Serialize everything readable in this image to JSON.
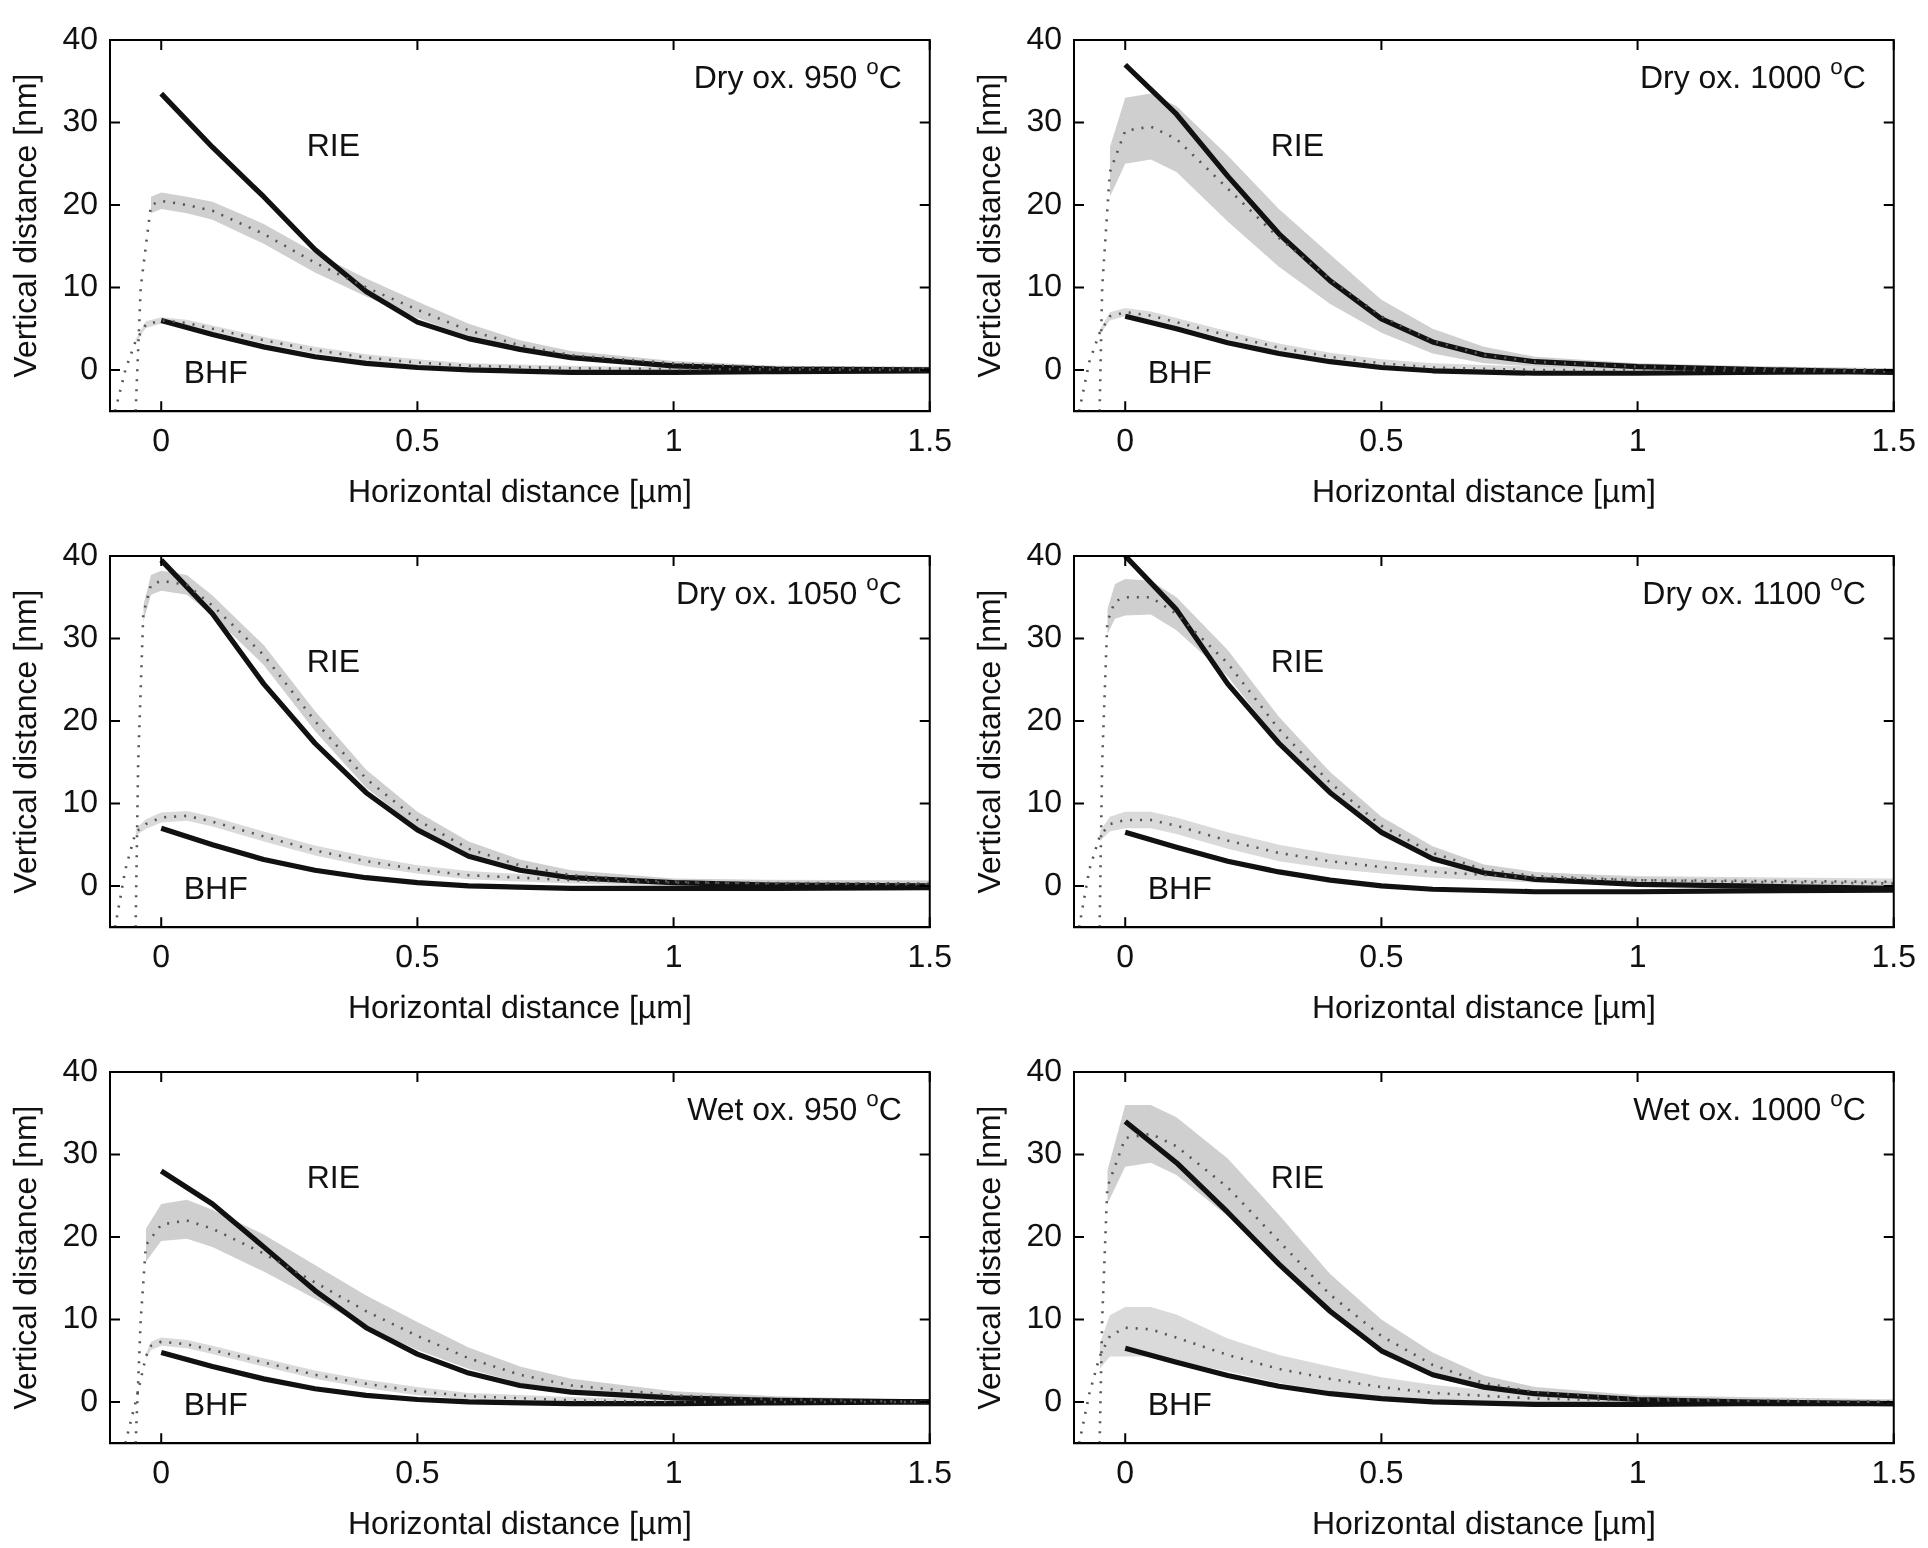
{
  "chart_data": [
    {
      "type": "line",
      "title": "Dry ox. 950 $^{o}$C",
      "xlabel": "Horizontal distance [µm]",
      "ylabel": "Vertical distance [nm]",
      "xlim": [
        -0.1,
        1.5
      ],
      "ylim": [
        -5,
        40
      ],
      "xticks": [
        0,
        0.5,
        1,
        1.5
      ],
      "yticks": [
        0,
        10,
        20,
        30,
        40
      ],
      "annotations": [
        "RIE",
        "BHF"
      ],
      "series": [
        {
          "type": "line",
          "color": "#555555",
          "line_style": "dotted",
          "x": [
            -0.05,
            -0.04,
            -0.02,
            0,
            0.05,
            0.1,
            0.2,
            0.3,
            0.4,
            0.5,
            0.6,
            0.7,
            0.8,
            1.0,
            1.2,
            1.5
          ],
          "values": [
            -5,
            10,
            20,
            20.5,
            20,
            19.3,
            16.5,
            13,
            10,
            7.3,
            4.8,
            3,
            1.8,
            0.8,
            0.3,
            0.2
          ],
          "lower": [
            null,
            null,
            19,
            19.5,
            19,
            18.2,
            15.3,
            11.8,
            8.9,
            6.3,
            4,
            2.4,
            1.3,
            0.5,
            0.1,
            0
          ],
          "upper": [
            null,
            null,
            21,
            21.5,
            21,
            20.4,
            17.7,
            14.2,
            11.1,
            8.3,
            5.6,
            3.6,
            2.3,
            1.1,
            0.5,
            0.4
          ]
        },
        {
          "type": "line",
          "color": "#555555",
          "line_style": "dotted",
          "x": [
            -0.09,
            -0.07,
            -0.05,
            -0.03,
            0,
            0.05,
            0.1,
            0.2,
            0.3,
            0.4,
            0.5,
            0.6,
            0.8,
            1.0,
            1.5
          ],
          "values": [
            -5,
            0,
            3.5,
            5.5,
            6,
            5.7,
            5,
            3.6,
            2.4,
            1.5,
            0.9,
            0.5,
            0.2,
            0.1,
            0
          ],
          "lower": [
            null,
            null,
            3.3,
            5.1,
            5.6,
            5.3,
            4.6,
            3.2,
            2,
            1.1,
            0.5,
            0.2,
            -0.1,
            -0.1,
            -0.2
          ],
          "upper": [
            null,
            null,
            3.7,
            5.9,
            6.4,
            6.1,
            5.4,
            4,
            2.8,
            1.9,
            1.3,
            0.8,
            0.5,
            0.3,
            0.2
          ]
        },
        {
          "type": "line",
          "color": "#111111",
          "line_style": "solid",
          "x": [
            0,
            0.1,
            0.2,
            0.3,
            0.4,
            0.5,
            0.6,
            0.7,
            0.8,
            1.0,
            1.2,
            1.5
          ],
          "values": [
            33.5,
            27,
            21,
            14.6,
            9.5,
            5.8,
            3.8,
            2.5,
            1.5,
            0.5,
            0.1,
            0
          ]
        },
        {
          "type": "line",
          "color": "#111111",
          "line_style": "solid",
          "x": [
            0,
            0.1,
            0.2,
            0.3,
            0.4,
            0.5,
            0.6,
            0.8,
            1.0,
            1.2,
            1.5
          ],
          "values": [
            6,
            4.3,
            2.8,
            1.6,
            0.8,
            0.3,
            0,
            -0.3,
            -0.3,
            -0.2,
            -0.1
          ]
        }
      ]
    },
    {
      "type": "line",
      "title": "Dry ox. 1000 $^{o}$C",
      "xlabel": "Horizontal distance [µm]",
      "ylabel": "Vertical distance [nm]",
      "xlim": [
        -0.1,
        1.5
      ],
      "ylim": [
        -5,
        40
      ],
      "xticks": [
        0,
        0.5,
        1,
        1.5
      ],
      "yticks": [
        0,
        10,
        20,
        30,
        40
      ],
      "annotations": [
        "RIE",
        "BHF"
      ],
      "series": [
        {
          "type": "line",
          "color": "#555555",
          "line_style": "dotted",
          "x": [
            -0.05,
            -0.045,
            -0.03,
            0,
            0.05,
            0.1,
            0.2,
            0.3,
            0.4,
            0.5,
            0.6,
            0.7,
            0.8,
            1.0,
            1.2,
            1.5
          ],
          "values": [
            -5,
            10,
            24,
            29,
            29.5,
            28,
            22,
            16,
            11,
            6.5,
            3.5,
            1.8,
            1,
            0.4,
            0.2,
            0
          ],
          "lower": [
            null,
            null,
            21,
            25,
            25.5,
            24,
            18,
            12.5,
            8,
            4.5,
            2,
            0.8,
            0.4,
            0,
            -0.1,
            -0.2
          ],
          "upper": [
            null,
            null,
            27,
            33,
            33.5,
            32,
            26,
            19.5,
            14,
            8.5,
            5,
            2.8,
            1.6,
            0.8,
            0.5,
            0.2
          ]
        },
        {
          "type": "line",
          "color": "#555555",
          "line_style": "dotted",
          "x": [
            -0.09,
            -0.07,
            -0.05,
            -0.03,
            0,
            0.05,
            0.1,
            0.2,
            0.3,
            0.4,
            0.5,
            0.6,
            0.8,
            1.0,
            1.5
          ],
          "values": [
            -5,
            1,
            4.5,
            6.5,
            7,
            6.6,
            5.8,
            4.2,
            2.7,
            1.6,
            0.8,
            0.3,
            0,
            0,
            -0.2
          ],
          "lower": [
            null,
            null,
            4.2,
            6,
            6.5,
            6.1,
            5.3,
            3.7,
            2.2,
            1.1,
            0.3,
            -0.2,
            -0.4,
            -0.4,
            -0.5
          ],
          "upper": [
            null,
            null,
            4.8,
            7,
            7.5,
            7.1,
            6.3,
            4.7,
            3.2,
            2.1,
            1.3,
            0.8,
            0.4,
            0.4,
            0.1
          ]
        },
        {
          "type": "line",
          "color": "#111111",
          "line_style": "solid",
          "x": [
            0,
            0.1,
            0.2,
            0.3,
            0.4,
            0.5,
            0.6,
            0.7,
            0.8,
            1.0,
            1.2,
            1.5
          ],
          "values": [
            37,
            31,
            23.5,
            16.5,
            10.8,
            6.2,
            3.4,
            1.8,
            1,
            0.4,
            0.1,
            -0.3
          ]
        },
        {
          "type": "line",
          "color": "#111111",
          "line_style": "solid",
          "x": [
            0,
            0.1,
            0.2,
            0.3,
            0.4,
            0.5,
            0.6,
            0.8,
            1.0,
            1.2,
            1.5
          ],
          "values": [
            6.5,
            5,
            3.3,
            2,
            1,
            0.3,
            -0.1,
            -0.4,
            -0.4,
            -0.3,
            -0.2
          ]
        }
      ]
    },
    {
      "type": "line",
      "title": "Dry ox. 1050 $^{o}$C",
      "xlabel": "Horizontal distance [µm]",
      "ylabel": "Vertical distance [nm]",
      "xlim": [
        -0.1,
        1.5
      ],
      "ylim": [
        -5,
        40
      ],
      "xticks": [
        0,
        0.5,
        1,
        1.5
      ],
      "yticks": [
        0,
        10,
        20,
        30,
        40
      ],
      "annotations": [
        "RIE",
        "BHF"
      ],
      "series": [
        {
          "type": "line",
          "color": "#555555",
          "line_style": "dotted",
          "x": [
            -0.05,
            -0.045,
            -0.035,
            -0.02,
            0,
            0.05,
            0.1,
            0.2,
            0.3,
            0.4,
            0.5,
            0.6,
            0.7,
            0.8,
            1.0,
            1.2,
            1.5
          ],
          "values": [
            -5,
            15,
            33,
            36.5,
            37,
            36.5,
            34,
            28,
            20,
            13,
            8,
            4.5,
            2.5,
            1.3,
            0.5,
            0.3,
            0.2
          ],
          "lower": [
            null,
            null,
            32,
            35.3,
            35.8,
            35.3,
            32.8,
            26.8,
            18.8,
            11.9,
            7,
            3.6,
            1.8,
            0.7,
            0.1,
            -0.1,
            -0.2
          ],
          "upper": [
            null,
            null,
            34,
            37.7,
            38.2,
            37.7,
            35.2,
            29.2,
            21.2,
            14.1,
            9,
            5.4,
            3.2,
            1.9,
            0.9,
            0.7,
            0.6
          ]
        },
        {
          "type": "line",
          "color": "#555555",
          "line_style": "dotted",
          "x": [
            -0.09,
            -0.07,
            -0.05,
            -0.03,
            0,
            0.05,
            0.1,
            0.2,
            0.3,
            0.4,
            0.5,
            0.6,
            0.8,
            1.0,
            1.5
          ],
          "values": [
            -5,
            2,
            6.5,
            7.5,
            8.3,
            8.5,
            7.8,
            6,
            4.3,
            3,
            2,
            1.3,
            0.7,
            0.4,
            0.3
          ],
          "lower": [
            null,
            null,
            6.1,
            6.9,
            7.7,
            7.9,
            7.2,
            5.4,
            3.7,
            2.4,
            1.5,
            0.8,
            0.3,
            0,
            -0.1
          ],
          "upper": [
            null,
            null,
            6.9,
            8.1,
            8.9,
            9.1,
            8.4,
            6.6,
            4.9,
            3.6,
            2.5,
            1.8,
            1.1,
            0.8,
            0.7
          ]
        },
        {
          "type": "line",
          "color": "#111111",
          "line_style": "solid",
          "x": [
            0,
            0.1,
            0.2,
            0.3,
            0.4,
            0.5,
            0.6,
            0.7,
            0.8,
            1.0,
            1.2,
            1.5
          ],
          "values": [
            39.5,
            33,
            24.5,
            17.3,
            11.3,
            6.8,
            3.6,
            1.9,
            1,
            0.4,
            0.1,
            0
          ]
        },
        {
          "type": "line",
          "color": "#111111",
          "line_style": "solid",
          "x": [
            0,
            0.1,
            0.2,
            0.3,
            0.4,
            0.5,
            0.6,
            0.8,
            1.0,
            1.2,
            1.5
          ],
          "values": [
            7,
            5,
            3.2,
            1.9,
            1,
            0.4,
            0,
            -0.3,
            -0.3,
            -0.3,
            -0.2
          ]
        }
      ]
    },
    {
      "type": "line",
      "title": "Dry ox. 1100 $^{o}$C",
      "xlabel": "Horizontal distance [µm]",
      "ylabel": "Vertical distance [nm]",
      "xlim": [
        -0.1,
        1.5
      ],
      "ylim": [
        -5,
        40
      ],
      "xticks": [
        0,
        0.5,
        1,
        1.5
      ],
      "yticks": [
        0,
        10,
        20,
        30,
        40
      ],
      "annotations": [
        "RIE",
        "BHF"
      ],
      "series": [
        {
          "type": "line",
          "color": "#555555",
          "line_style": "dotted",
          "x": [
            -0.05,
            -0.045,
            -0.035,
            -0.02,
            0,
            0.05,
            0.1,
            0.2,
            0.3,
            0.4,
            0.5,
            0.6,
            0.7,
            0.8,
            1.0,
            1.2,
            1.5
          ],
          "values": [
            -5,
            15,
            32,
            34.5,
            35,
            35,
            33,
            27,
            19,
            12.5,
            7.3,
            4,
            2,
            1.2,
            0.7,
            0.5,
            0.3
          ],
          "lower": [
            null,
            null,
            30.5,
            32.4,
            32.8,
            32.9,
            31,
            25.4,
            17.5,
            11.2,
            6.2,
            3.2,
            1.4,
            0.7,
            0.3,
            0.1,
            0
          ],
          "upper": [
            null,
            null,
            33.5,
            36.6,
            37.2,
            37,
            35,
            28.6,
            20.5,
            13.8,
            8.4,
            4.8,
            2.6,
            1.7,
            1.1,
            0.9,
            0.6
          ]
        },
        {
          "type": "line",
          "color": "#555555",
          "line_style": "dotted",
          "x": [
            -0.09,
            -0.07,
            -0.05,
            -0.03,
            0,
            0.05,
            0.1,
            0.2,
            0.3,
            0.4,
            0.5,
            0.6,
            0.8,
            1.0,
            1.5
          ],
          "values": [
            -5,
            2,
            6,
            7.5,
            8,
            8,
            7.3,
            5.5,
            4,
            3,
            2.3,
            1.7,
            1,
            0.7,
            0.5
          ],
          "lower": [
            null,
            null,
            5.4,
            6.6,
            7,
            7,
            6.3,
            4.5,
            3,
            2.1,
            1.5,
            1,
            0.4,
            0.2,
            0.1
          ],
          "upper": [
            null,
            null,
            6.6,
            8.4,
            9,
            9,
            8.3,
            6.5,
            5,
            3.9,
            3.1,
            2.4,
            1.6,
            1.2,
            0.9
          ]
        },
        {
          "type": "line",
          "color": "#111111",
          "line_style": "solid",
          "x": [
            0,
            0.1,
            0.2,
            0.3,
            0.4,
            0.5,
            0.6,
            0.7,
            0.8,
            1.0,
            1.2,
            1.5
          ],
          "values": [
            40,
            33.5,
            24.5,
            17.3,
            11.3,
            6.5,
            3.3,
            1.6,
            0.8,
            0.2,
            0,
            -0.3
          ]
        },
        {
          "type": "line",
          "color": "#111111",
          "line_style": "solid",
          "x": [
            0,
            0.1,
            0.2,
            0.3,
            0.4,
            0.5,
            0.6,
            0.8,
            1.0,
            1.2,
            1.5
          ],
          "values": [
            6.5,
            4.7,
            3,
            1.7,
            0.7,
            0,
            -0.4,
            -0.7,
            -0.7,
            -0.6,
            -0.5
          ]
        }
      ]
    },
    {
      "type": "line",
      "title": "Wet ox. 950 $^{o}$C",
      "xlabel": "Horizontal distance [µm]",
      "ylabel": "Vertical distance [nm]",
      "xlim": [
        -0.1,
        1.5
      ],
      "ylim": [
        -5,
        40
      ],
      "xticks": [
        0,
        0.5,
        1,
        1.5
      ],
      "yticks": [
        0,
        10,
        20,
        30,
        40
      ],
      "annotations": [
        "RIE",
        "BHF"
      ],
      "series": [
        {
          "type": "line",
          "color": "#555555",
          "line_style": "dotted",
          "x": [
            -0.05,
            -0.04,
            -0.03,
            0,
            0.05,
            0.1,
            0.2,
            0.3,
            0.4,
            0.5,
            0.6,
            0.7,
            0.8,
            1.0,
            1.2,
            1.5
          ],
          "values": [
            -5,
            10,
            19,
            21.5,
            22,
            21,
            18,
            14.5,
            11,
            8,
            5.3,
            3.3,
            2,
            0.8,
            0.3,
            0
          ],
          "lower": [
            null,
            null,
            17,
            19.5,
            19.8,
            18.8,
            15.8,
            12.5,
            9.1,
            6.3,
            4,
            2.3,
            1.2,
            0.3,
            -0.1,
            -0.2
          ],
          "upper": [
            null,
            null,
            21,
            24,
            24.5,
            23.3,
            20.3,
            16.6,
            12.9,
            9.7,
            6.6,
            4.3,
            2.8,
            1.3,
            0.7,
            0.2
          ]
        },
        {
          "type": "line",
          "color": "#555555",
          "line_style": "dotted",
          "x": [
            -0.07,
            -0.05,
            -0.03,
            -0.02,
            0,
            0.05,
            0.1,
            0.2,
            0.3,
            0.4,
            0.5,
            0.6,
            0.8,
            1.0,
            1.5
          ],
          "values": [
            -5,
            0,
            5.5,
            6.8,
            7.3,
            7,
            6.3,
            4.8,
            3.3,
            2.2,
            1.3,
            0.7,
            0.2,
            0,
            0
          ],
          "lower": [
            null,
            null,
            5.2,
            6.3,
            6.8,
            6.5,
            5.8,
            4.3,
            2.8,
            1.7,
            0.8,
            0.3,
            -0.2,
            -0.3,
            -0.3
          ],
          "upper": [
            null,
            null,
            5.8,
            7.3,
            7.8,
            7.5,
            6.8,
            5.3,
            3.8,
            2.7,
            1.8,
            1.1,
            0.6,
            0.3,
            0.3
          ]
        },
        {
          "type": "line",
          "color": "#111111",
          "line_style": "solid",
          "x": [
            0,
            0.1,
            0.2,
            0.3,
            0.4,
            0.5,
            0.6,
            0.7,
            0.8,
            1.0,
            1.2,
            1.5
          ],
          "values": [
            28,
            24,
            18.8,
            13.5,
            9,
            5.8,
            3.5,
            2,
            1.2,
            0.5,
            0.2,
            0
          ]
        },
        {
          "type": "line",
          "color": "#111111",
          "line_style": "solid",
          "x": [
            0,
            0.1,
            0.2,
            0.3,
            0.4,
            0.5,
            0.6,
            0.8,
            1.0,
            1.2,
            1.5
          ],
          "values": [
            6,
            4.3,
            2.8,
            1.6,
            0.8,
            0.3,
            0,
            -0.2,
            -0.2,
            -0.1,
            0
          ]
        }
      ]
    },
    {
      "type": "line",
      "title": "Wet ox. 1000 $^{o}$C",
      "xlabel": "Horizontal distance [µm]",
      "ylabel": "Vertical distance [nm]",
      "xlim": [
        -0.1,
        1.5
      ],
      "ylim": [
        -5,
        40
      ],
      "xticks": [
        0,
        0.5,
        1,
        1.5
      ],
      "yticks": [
        0,
        10,
        20,
        30,
        40
      ],
      "annotations": [
        "RIE",
        "BHF"
      ],
      "series": [
        {
          "type": "line",
          "color": "#555555",
          "line_style": "dotted",
          "x": [
            -0.05,
            -0.045,
            -0.035,
            0,
            0.05,
            0.1,
            0.2,
            0.3,
            0.4,
            0.5,
            0.6,
            0.7,
            0.8,
            1.0,
            1.2,
            1.5
          ],
          "values": [
            -5,
            10,
            26,
            32,
            32.5,
            31,
            26,
            19.5,
            13,
            8,
            4.5,
            2.3,
            1.2,
            0.4,
            0.2,
            0
          ],
          "lower": [
            null,
            null,
            24,
            28.5,
            29,
            27.5,
            22.5,
            16.3,
            10.5,
            6,
            3,
            1.5,
            0.6,
            0,
            -0.2,
            -0.3
          ],
          "upper": [
            null,
            null,
            28,
            36,
            36,
            34.5,
            29.5,
            22.7,
            15.5,
            10,
            6,
            3.2,
            1.8,
            0.8,
            0.6,
            0.3
          ]
        },
        {
          "type": "line",
          "color": "#555555",
          "line_style": "dotted",
          "x": [
            -0.09,
            -0.07,
            -0.05,
            -0.03,
            0,
            0.05,
            0.1,
            0.2,
            0.3,
            0.4,
            0.5,
            0.6,
            0.8,
            1.0,
            1.5
          ],
          "values": [
            -5,
            1,
            5.5,
            8,
            9,
            8.8,
            7.8,
            5.7,
            4,
            2.8,
            1.8,
            1.1,
            0.4,
            0.2,
            0
          ],
          "lower": [
            null,
            null,
            4,
            5.5,
            5.5,
            5.5,
            5,
            3.7,
            2.3,
            1.3,
            0.6,
            0.1,
            -0.1,
            -0.2,
            -0.3
          ],
          "upper": [
            null,
            null,
            7,
            10.5,
            11.5,
            11.5,
            10.6,
            7.7,
            5.7,
            4.3,
            3,
            2.1,
            0.9,
            0.6,
            0.3
          ]
        },
        {
          "type": "line",
          "color": "#111111",
          "line_style": "solid",
          "x": [
            0,
            0.1,
            0.2,
            0.3,
            0.4,
            0.5,
            0.6,
            0.7,
            0.8,
            1.0,
            1.2,
            1.5
          ],
          "values": [
            34,
            29,
            23,
            16.7,
            11,
            6.2,
            3.3,
            1.8,
            1,
            0.3,
            0,
            -0.2
          ]
        },
        {
          "type": "line",
          "color": "#111111",
          "line_style": "solid",
          "x": [
            0,
            0.1,
            0.2,
            0.3,
            0.4,
            0.5,
            0.6,
            0.8,
            1.0,
            1.2,
            1.5
          ],
          "values": [
            6.5,
            4.8,
            3.2,
            1.9,
            1,
            0.4,
            0,
            -0.3,
            -0.3,
            -0.2,
            -0.2
          ]
        }
      ]
    }
  ]
}
